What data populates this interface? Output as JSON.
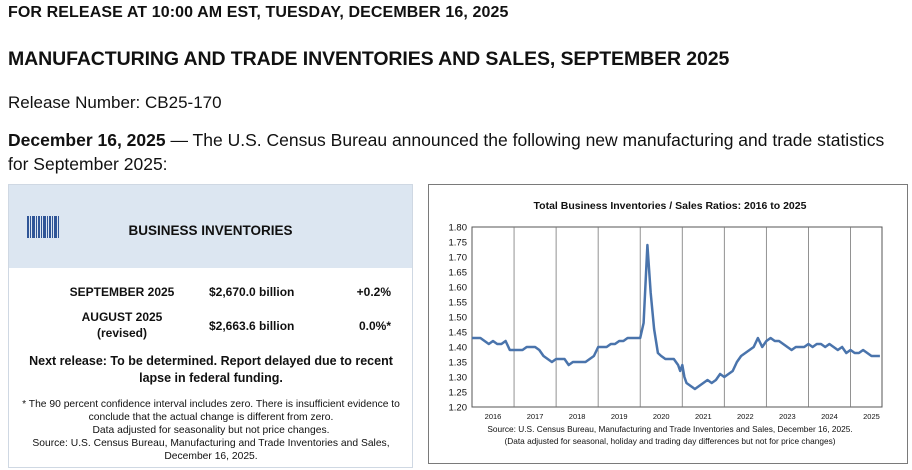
{
  "release_time": "FOR RELEASE AT 10:00 AM EST, TUESDAY, DECEMBER 16, 2025",
  "headline": "MANUFACTURING AND TRADE INVENTORIES AND SALES, SEPTEMBER 2025",
  "release_number": "Release Number: CB25-170",
  "intro": {
    "date": "December 16, 2025",
    "dash": " — ",
    "text": "The U.S. Census Bureau announced the following new manufacturing and trade statistics for September 2025:"
  },
  "inventory_box": {
    "title": "BUSINESS INVENTORIES",
    "icon": "barcode-icon",
    "rows": [
      {
        "period": "SEPTEMBER 2025",
        "amount": "$2,670.0 billion",
        "change": "+0.2%"
      },
      {
        "period": "AUGUST 2025",
        "period_note": "(revised)",
        "amount": "$2,663.6 billion",
        "change": "0.0%*"
      }
    ],
    "next_release": "Next release: To be determined. Report delayed due to recent lapse in federal funding.",
    "footnote": "* The 90 percent confidence interval includes zero. There is insufficient evidence to conclude that the actual change is different from zero.",
    "adjustment_note": "Data adjusted for seasonality but not price changes.",
    "source": "Source: U.S. Census Bureau, Manufacturing and Trade Inventories and Sales, December 16, 2025."
  },
  "chart_data": {
    "type": "line",
    "title": "Total Business Inventories / Sales Ratios: 2016 to 2025",
    "x_tick_labels": [
      "2016",
      "2017",
      "2018",
      "2019",
      "2020",
      "2021",
      "2022",
      "2023",
      "2024",
      "2025"
    ],
    "y_tick_labels": [
      "1.80",
      "1.75",
      "1.70",
      "1.65",
      "1.60",
      "1.55",
      "1.50",
      "1.45",
      "1.40",
      "1.35",
      "1.30",
      "1.25",
      "1.20"
    ],
    "ylim": [
      1.2,
      1.8
    ],
    "x_range": [
      2016.0,
      2025.75
    ],
    "series": [
      {
        "name": "Total Business Inventories / Sales Ratio",
        "color": "#4a74ac",
        "points": [
          [
            2016.0,
            1.43
          ],
          [
            2016.1,
            1.43
          ],
          [
            2016.2,
            1.43
          ],
          [
            2016.3,
            1.42
          ],
          [
            2016.4,
            1.41
          ],
          [
            2016.5,
            1.42
          ],
          [
            2016.6,
            1.41
          ],
          [
            2016.7,
            1.41
          ],
          [
            2016.8,
            1.42
          ],
          [
            2016.9,
            1.39
          ],
          [
            2017.0,
            1.39
          ],
          [
            2017.1,
            1.39
          ],
          [
            2017.2,
            1.39
          ],
          [
            2017.3,
            1.4
          ],
          [
            2017.4,
            1.4
          ],
          [
            2017.5,
            1.4
          ],
          [
            2017.6,
            1.39
          ],
          [
            2017.7,
            1.37
          ],
          [
            2017.8,
            1.36
          ],
          [
            2017.9,
            1.35
          ],
          [
            2018.0,
            1.36
          ],
          [
            2018.1,
            1.36
          ],
          [
            2018.2,
            1.36
          ],
          [
            2018.3,
            1.34
          ],
          [
            2018.4,
            1.35
          ],
          [
            2018.5,
            1.35
          ],
          [
            2018.6,
            1.35
          ],
          [
            2018.7,
            1.35
          ],
          [
            2018.8,
            1.36
          ],
          [
            2018.9,
            1.37
          ],
          [
            2019.0,
            1.4
          ],
          [
            2019.1,
            1.4
          ],
          [
            2019.2,
            1.4
          ],
          [
            2019.3,
            1.41
          ],
          [
            2019.4,
            1.41
          ],
          [
            2019.5,
            1.42
          ],
          [
            2019.6,
            1.42
          ],
          [
            2019.7,
            1.43
          ],
          [
            2019.8,
            1.43
          ],
          [
            2019.9,
            1.43
          ],
          [
            2020.0,
            1.43
          ],
          [
            2020.08,
            1.48
          ],
          [
            2020.17,
            1.74
          ],
          [
            2020.25,
            1.58
          ],
          [
            2020.33,
            1.46
          ],
          [
            2020.42,
            1.38
          ],
          [
            2020.5,
            1.37
          ],
          [
            2020.6,
            1.36
          ],
          [
            2020.7,
            1.36
          ],
          [
            2020.8,
            1.36
          ],
          [
            2020.9,
            1.34
          ],
          [
            2020.95,
            1.32
          ],
          [
            2021.0,
            1.34
          ],
          [
            2021.05,
            1.3
          ],
          [
            2021.1,
            1.28
          ],
          [
            2021.2,
            1.27
          ],
          [
            2021.3,
            1.26
          ],
          [
            2021.4,
            1.27
          ],
          [
            2021.5,
            1.28
          ],
          [
            2021.6,
            1.29
          ],
          [
            2021.7,
            1.28
          ],
          [
            2021.8,
            1.29
          ],
          [
            2021.9,
            1.31
          ],
          [
            2022.0,
            1.3
          ],
          [
            2022.1,
            1.31
          ],
          [
            2022.2,
            1.32
          ],
          [
            2022.3,
            1.35
          ],
          [
            2022.4,
            1.37
          ],
          [
            2022.5,
            1.38
          ],
          [
            2022.6,
            1.39
          ],
          [
            2022.7,
            1.4
          ],
          [
            2022.8,
            1.43
          ],
          [
            2022.9,
            1.4
          ],
          [
            2023.0,
            1.42
          ],
          [
            2023.1,
            1.43
          ],
          [
            2023.2,
            1.42
          ],
          [
            2023.3,
            1.42
          ],
          [
            2023.4,
            1.41
          ],
          [
            2023.5,
            1.4
          ],
          [
            2023.6,
            1.39
          ],
          [
            2023.7,
            1.4
          ],
          [
            2023.8,
            1.4
          ],
          [
            2023.9,
            1.4
          ],
          [
            2024.0,
            1.41
          ],
          [
            2024.1,
            1.4
          ],
          [
            2024.2,
            1.41
          ],
          [
            2024.3,
            1.41
          ],
          [
            2024.4,
            1.4
          ],
          [
            2024.5,
            1.41
          ],
          [
            2024.6,
            1.4
          ],
          [
            2024.7,
            1.39
          ],
          [
            2024.8,
            1.4
          ],
          [
            2024.9,
            1.38
          ],
          [
            2025.0,
            1.39
          ],
          [
            2025.1,
            1.38
          ],
          [
            2025.2,
            1.38
          ],
          [
            2025.3,
            1.39
          ],
          [
            2025.4,
            1.38
          ],
          [
            2025.5,
            1.37
          ],
          [
            2025.6,
            1.37
          ],
          [
            2025.7,
            1.37
          ]
        ]
      }
    ],
    "grid": "vertical year lines",
    "source": "Source: U.S. Census Bureau, Manufacturing and Trade Inventories and Sales, December 16, 2025.",
    "note": "(Data adjusted for seasonal, holiday and trading day differences but not for price changes)"
  }
}
